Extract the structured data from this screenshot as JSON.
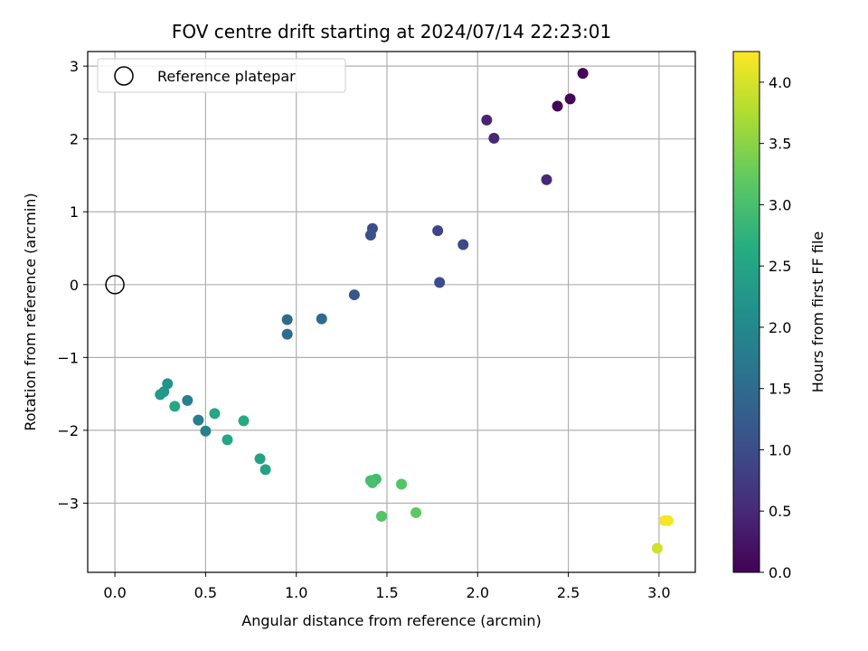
{
  "chart_data": {
    "type": "scatter",
    "title": "FOV centre drift starting at 2024/07/14 22:23:01",
    "xlabel": "Angular distance from reference (arcmin)",
    "ylabel": "Rotation from reference (arcmin)",
    "xlim": [
      -0.15,
      3.2
    ],
    "ylim": [
      -3.95,
      3.2
    ],
    "x_ticks": [
      0.0,
      0.5,
      1.0,
      1.5,
      2.0,
      2.5,
      3.0
    ],
    "x_tick_labels": [
      "0.0",
      "0.5",
      "1.0",
      "1.5",
      "2.0",
      "2.5",
      "3.0"
    ],
    "y_ticks": [
      -3,
      -2,
      -1,
      0,
      1,
      2,
      3
    ],
    "y_tick_labels": [
      "−3",
      "−2",
      "−1",
      "0",
      "1",
      "2",
      "3"
    ],
    "grid": true,
    "legend": {
      "placement": "top-left",
      "label": "Reference platepar"
    },
    "reference_point": {
      "x": 0.0,
      "y": 0.0
    },
    "colorbar": {
      "label": "Hours from first FF file",
      "colormap": "viridis",
      "range": [
        0.0,
        4.25
      ],
      "ticks": [
        0.0,
        0.5,
        1.0,
        1.5,
        2.0,
        2.5,
        3.0,
        3.5,
        4.0
      ],
      "tick_labels": [
        "0.0",
        "0.5",
        "1.0",
        "1.5",
        "2.0",
        "2.5",
        "3.0",
        "3.5",
        "4.0"
      ]
    },
    "points": [
      {
        "x": 2.58,
        "y": 2.9,
        "c": 0.05
      },
      {
        "x": 2.51,
        "y": 2.55,
        "c": 0.08
      },
      {
        "x": 2.44,
        "y": 2.45,
        "c": 0.05
      },
      {
        "x": 2.05,
        "y": 2.26,
        "c": 0.45
      },
      {
        "x": 2.09,
        "y": 2.01,
        "c": 0.48
      },
      {
        "x": 2.38,
        "y": 1.44,
        "c": 0.5
      },
      {
        "x": 1.42,
        "y": 0.77,
        "c": 1.0
      },
      {
        "x": 1.41,
        "y": 0.68,
        "c": 1.05
      },
      {
        "x": 1.78,
        "y": 0.74,
        "c": 0.9
      },
      {
        "x": 1.92,
        "y": 0.55,
        "c": 0.95
      },
      {
        "x": 1.79,
        "y": 0.03,
        "c": 1.0
      },
      {
        "x": 1.32,
        "y": -0.14,
        "c": 1.15
      },
      {
        "x": 0.95,
        "y": -0.48,
        "c": 1.5
      },
      {
        "x": 1.14,
        "y": -0.47,
        "c": 1.5
      },
      {
        "x": 0.95,
        "y": -0.68,
        "c": 1.55
      },
      {
        "x": 0.4,
        "y": -1.59,
        "c": 1.85
      },
      {
        "x": 0.46,
        "y": -1.86,
        "c": 1.8
      },
      {
        "x": 0.5,
        "y": -2.01,
        "c": 1.85
      },
      {
        "x": 0.29,
        "y": -1.36,
        "c": 2.2
      },
      {
        "x": 0.27,
        "y": -1.47,
        "c": 2.25
      },
      {
        "x": 0.25,
        "y": -1.51,
        "c": 2.3
      },
      {
        "x": 0.33,
        "y": -1.67,
        "c": 2.55
      },
      {
        "x": 0.55,
        "y": -1.77,
        "c": 2.55
      },
      {
        "x": 0.62,
        "y": -2.13,
        "c": 2.55
      },
      {
        "x": 0.71,
        "y": -1.87,
        "c": 2.6
      },
      {
        "x": 0.8,
        "y": -2.39,
        "c": 2.45
      },
      {
        "x": 0.83,
        "y": -2.54,
        "c": 2.45
      },
      {
        "x": 1.41,
        "y": -2.69,
        "c": 2.95
      },
      {
        "x": 1.44,
        "y": -2.67,
        "c": 2.95
      },
      {
        "x": 1.42,
        "y": -2.72,
        "c": 3.0
      },
      {
        "x": 1.47,
        "y": -3.18,
        "c": 3.1
      },
      {
        "x": 1.58,
        "y": -2.74,
        "c": 3.1
      },
      {
        "x": 1.66,
        "y": -3.13,
        "c": 3.2
      },
      {
        "x": 2.99,
        "y": -3.62,
        "c": 3.95
      },
      {
        "x": 3.03,
        "y": -3.24,
        "c": 4.2
      },
      {
        "x": 3.05,
        "y": -3.24,
        "c": 4.2
      }
    ]
  }
}
